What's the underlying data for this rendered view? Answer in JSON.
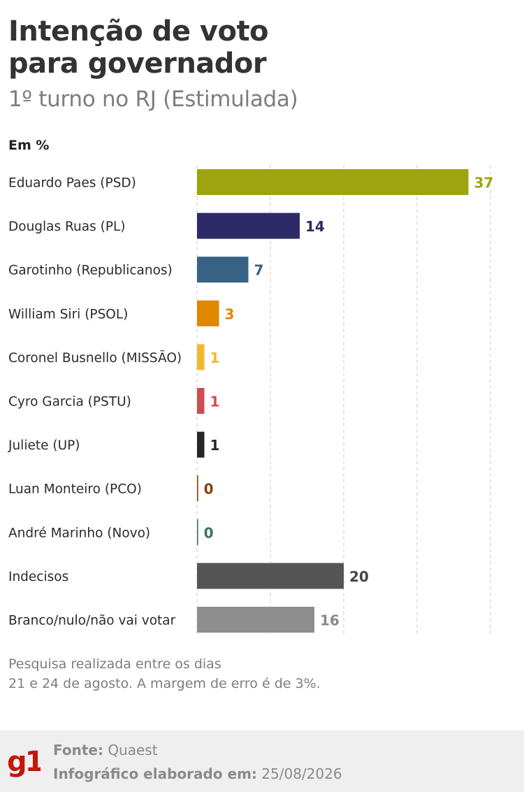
{
  "header": {
    "title_line1": "Intenção de voto",
    "title_line2": "para governador",
    "subtitle": "1º turno no RJ (Estimulada)",
    "unit": "Em %"
  },
  "chart_data": {
    "type": "bar",
    "orientation": "horizontal",
    "categories": [
      "Eduardo Paes (PSD)",
      "Douglas Ruas (PL)",
      "Garotinho (Republicanos)",
      "William Siri (PSOL)",
      "Coronel Busnello (MISSÃO)",
      "Cyro Garcia (PSTU)",
      "Juliete (UP)",
      "Luan Monteiro (PCO)",
      "André Marinho (Novo)",
      "Indecisos",
      "Branco/nulo/não vai votar"
    ],
    "values": [
      37,
      14,
      7,
      3,
      1,
      1,
      1,
      0,
      0,
      20,
      16
    ],
    "colors": [
      "#9ea40e",
      "#2e2a68",
      "#386283",
      "#e08800",
      "#f3b92e",
      "#cf4c50",
      "#262626",
      "#8a3e0c",
      "#3f6e6b",
      "#555555",
      "#8e8e8e"
    ],
    "label_colors": [
      "#9ea40e",
      "#2e2a68",
      "#386283",
      "#e08800",
      "#f3b92e",
      "#cf4c50",
      "#262626",
      "#8a3e0c",
      "#3f6e6b",
      "#444444",
      "#8a8a8a"
    ],
    "xlim": [
      0,
      40
    ],
    "grid": true
  },
  "note": {
    "line1": "Pesquisa realizada entre os dias",
    "line2": "21 e 24 de agosto. A margem de erro é de 3%."
  },
  "footer": {
    "logo_text": "g1",
    "logo_color": "#c4170c",
    "source_label": "Fonte:",
    "source_value": "Quaest",
    "date_label": "Infográfico elaborado em:",
    "date_value": "25/08/2026"
  }
}
